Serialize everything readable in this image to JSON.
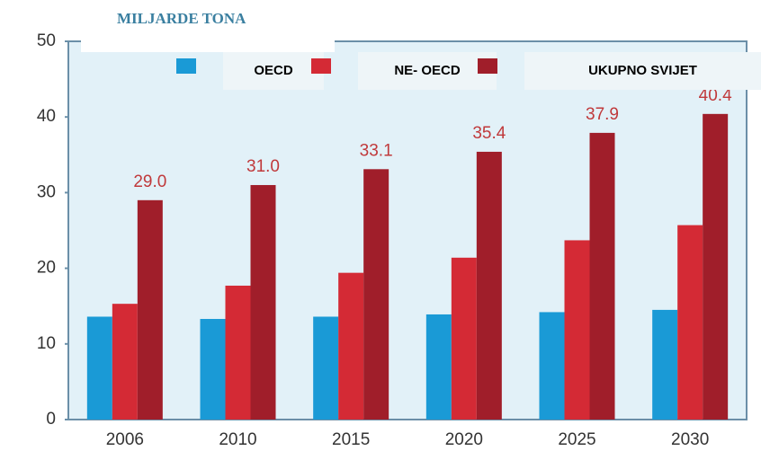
{
  "chart_data": {
    "type": "bar",
    "title": "MILJARDE TONA",
    "categories": [
      "2006",
      "2010",
      "2015",
      "2020",
      "2025",
      "2030"
    ],
    "series": [
      {
        "name": "OECD",
        "color": "#1a9ad6",
        "values": [
          13.6,
          13.3,
          13.6,
          13.9,
          14.2,
          14.5
        ]
      },
      {
        "name": "NE- OECD",
        "color": "#d42a35",
        "values": [
          15.3,
          17.7,
          19.4,
          21.4,
          23.7,
          25.7
        ]
      },
      {
        "name": "UKUPNO SVIJET",
        "color": "#a01e2a",
        "values": [
          29.0,
          31.0,
          33.1,
          35.4,
          37.9,
          40.4
        ],
        "value_labels": [
          "29.0",
          "31.0",
          "33.1",
          "35.4",
          "37.9",
          "40.4"
        ]
      }
    ],
    "ylim": [
      0,
      50
    ],
    "yticks": [
      0,
      10,
      20,
      30,
      40,
      50
    ]
  }
}
